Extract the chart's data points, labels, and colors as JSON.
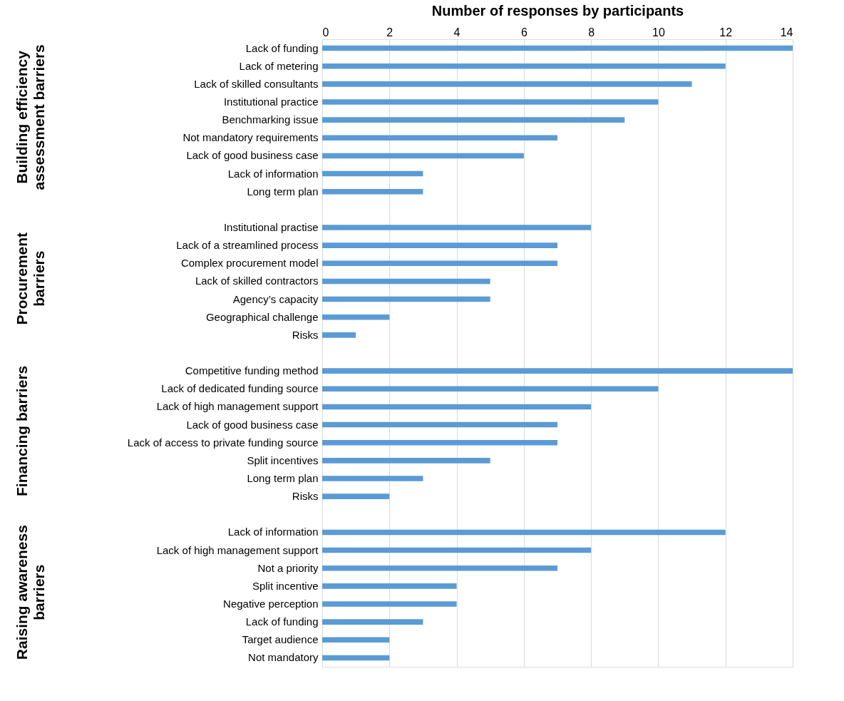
{
  "chart_data": {
    "type": "bar",
    "orientation": "horizontal",
    "xlabel": "Number of responses by participants",
    "categories": [
      "Lack of funding",
      "Lack of metering",
      "Lack of skilled consultants",
      "Institutional practice",
      "Benchmarking issue",
      "Not mandatory requirements",
      "Lack of good business case",
      "Lack of information",
      "Long term plan",
      null,
      "Institutional practise",
      "Lack of a streamlined process",
      "Complex procurement model",
      "Lack of skilled contractors",
      "Agency’s capacity",
      "Geographical challenge",
      "Risks",
      null,
      "Competitive funding method",
      "Lack of dedicated funding source",
      "Lack of high management support",
      "Lack of good business case",
      "Lack of access to private funding source",
      "Split incentives",
      "Long term plan",
      "Risks",
      null,
      "Lack of information",
      "Lack of high management support",
      "Not a priority",
      "Split incentive",
      "Negative perception",
      "Lack of funding",
      "Target audience",
      "Not mandatory"
    ],
    "values": [
      14,
      12,
      11,
      10,
      9,
      7,
      6,
      3,
      3,
      null,
      8,
      7,
      7,
      5,
      5,
      2,
      1,
      null,
      14,
      10,
      8,
      7,
      7,
      5,
      3,
      2,
      null,
      12,
      8,
      7,
      4,
      4,
      3,
      2,
      2
    ],
    "color": "#5b9bd5",
    "xlim": [
      0,
      14
    ],
    "xticks": [
      0,
      2,
      4,
      6,
      8,
      10,
      12,
      14
    ],
    "grid": "x",
    "annotations": [
      "Building efficiency assessment barriers",
      "Procurement barriers",
      "Financing barriers",
      "Raising awareness barriers"
    ]
  }
}
